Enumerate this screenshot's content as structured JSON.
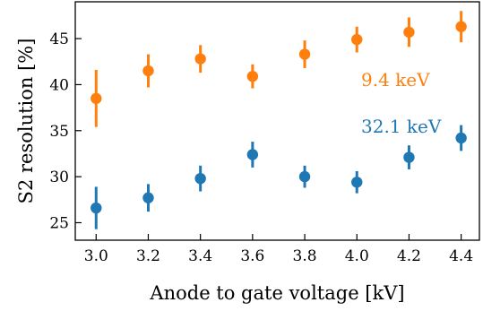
{
  "chart_data": {
    "type": "scatter",
    "xlabel": "Anode to gate voltage [kV]",
    "ylabel": "S2 resolution [%]",
    "xlim": [
      2.92,
      4.47
    ],
    "ylim": [
      23.1,
      49.0
    ],
    "xticks": [
      "3.0",
      "3.2",
      "3.4",
      "3.6",
      "3.8",
      "4.0",
      "4.2",
      "4.4"
    ],
    "yticks": [
      "25",
      "30",
      "35",
      "40",
      "45"
    ],
    "grid": false,
    "series": [
      {
        "name": "9.4 keV",
        "color": "#ff7f0e",
        "x": [
          3.0,
          3.2,
          3.4,
          3.6,
          3.8,
          4.0,
          4.2,
          4.4
        ],
        "y": [
          38.5,
          41.5,
          42.8,
          40.9,
          43.3,
          44.9,
          45.7,
          46.3
        ],
        "yerr": [
          3.1,
          1.8,
          1.5,
          1.3,
          1.5,
          1.4,
          1.6,
          1.7
        ]
      },
      {
        "name": "32.1 keV",
        "color": "#1f77b4",
        "x": [
          3.0,
          3.2,
          3.4,
          3.6,
          3.8,
          4.0,
          4.2,
          4.4
        ],
        "y": [
          26.6,
          27.7,
          29.8,
          32.4,
          30.0,
          29.4,
          32.1,
          34.2
        ],
        "yerr": [
          2.3,
          1.5,
          1.4,
          1.4,
          1.2,
          1.2,
          1.3,
          1.4
        ]
      }
    ]
  }
}
